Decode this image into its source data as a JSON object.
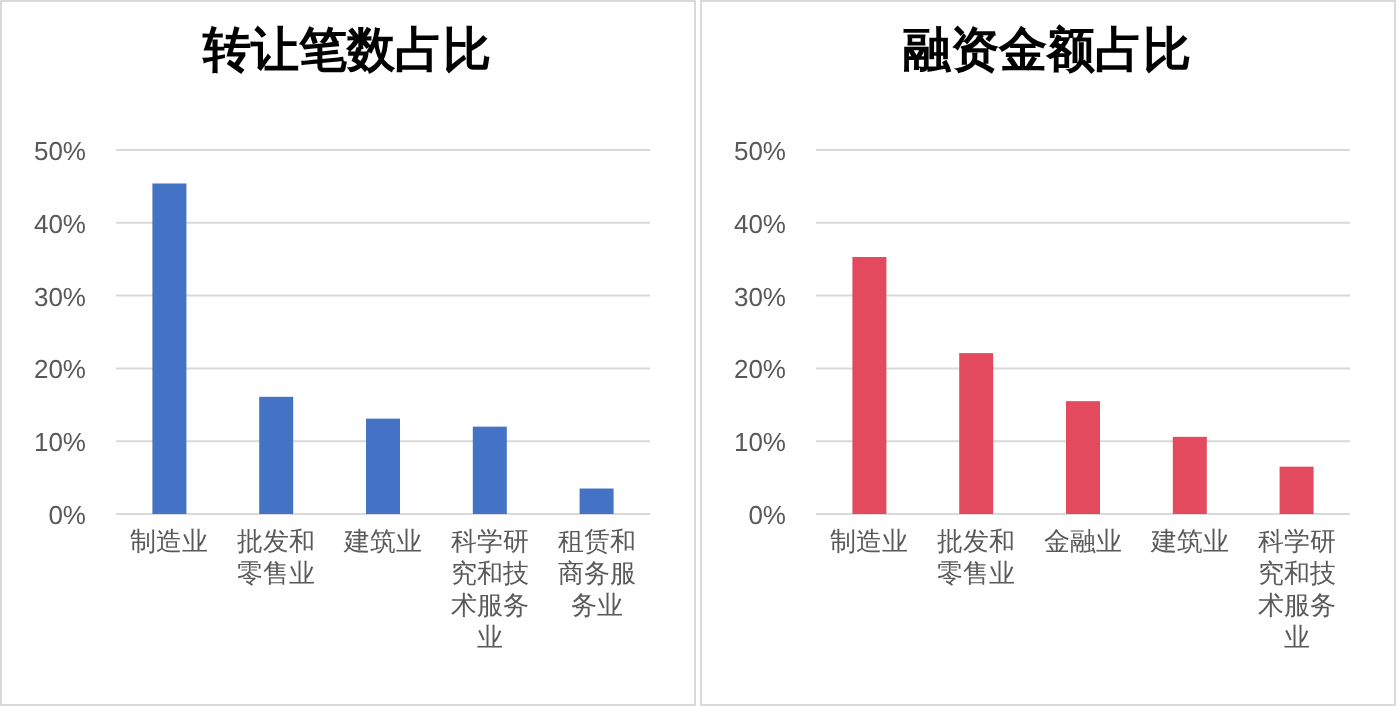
{
  "chart_data": [
    {
      "type": "bar",
      "title": "转让笔数占比",
      "categories": [
        "制造业",
        "批发和零售业",
        "建筑业",
        "科学研究和技术服务业",
        "租赁和商务服务业"
      ],
      "values": [
        45.4,
        16.1,
        13.1,
        12.0,
        3.5
      ],
      "color": "#4472c4",
      "ylim": [
        0,
        50
      ],
      "yticks": [
        {
          "value": 0,
          "label": "0%"
        },
        {
          "value": 10,
          "label": "10%"
        },
        {
          "value": 20,
          "label": "20%"
        },
        {
          "value": 30,
          "label": "30%"
        },
        {
          "value": 40,
          "label": "40%"
        },
        {
          "value": 50,
          "label": "50%"
        }
      ],
      "grid": "y"
    },
    {
      "type": "bar",
      "title": "融资金额占比",
      "categories": [
        "制造业",
        "批发和零售业",
        "金融业",
        "建筑业",
        "科学研究和技术服务业"
      ],
      "values": [
        35.3,
        22.1,
        15.5,
        10.6,
        6.5
      ],
      "color": "#e34a5e",
      "ylim": [
        0,
        50
      ],
      "yticks": [
        {
          "value": 0,
          "label": "0%"
        },
        {
          "value": 10,
          "label": "10%"
        },
        {
          "value": 20,
          "label": "20%"
        },
        {
          "value": 30,
          "label": "30%"
        },
        {
          "value": 40,
          "label": "40%"
        },
        {
          "value": 50,
          "label": "50%"
        }
      ],
      "grid": "y"
    }
  ]
}
